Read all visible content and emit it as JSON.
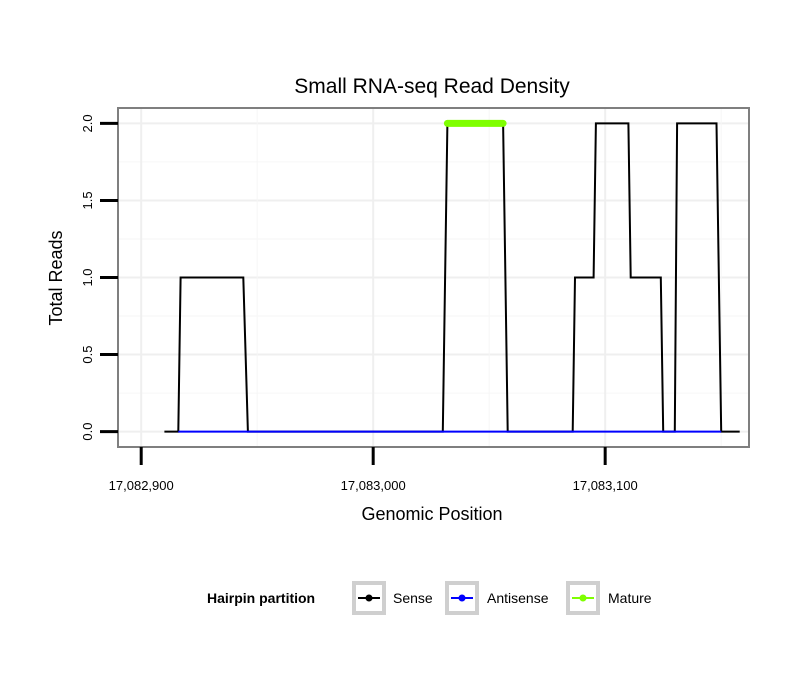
{
  "chart_data": {
    "type": "line",
    "title": "Small RNA-seq Read Density",
    "xlabel": "Genomic Position",
    "ylabel": "Total Reads",
    "xlim": [
      17082890,
      17083162
    ],
    "ylim": [
      -0.1,
      2.1
    ],
    "x_ticks": [
      17082900,
      17083000,
      17083100
    ],
    "x_tick_labels": [
      "17,082,900",
      "17,083,000",
      "17,083,100"
    ],
    "y_ticks": [
      0,
      0.5,
      1,
      1.5,
      2
    ],
    "y_tick_labels": [
      "0.0",
      "0.5",
      "1.0",
      "1.5",
      "2.0"
    ],
    "grid": true,
    "series": [
      {
        "name": "Sense",
        "color": "#000000",
        "x": [
          17082910,
          17082916,
          17082917,
          17082944,
          17082946,
          17083030,
          17083032,
          17083056,
          17083058,
          17083086,
          17083087,
          17083095,
          17083096,
          17083110,
          17083111,
          17083124,
          17083125,
          17083130,
          17083131,
          17083148,
          17083150,
          17083158
        ],
        "y": [
          0,
          0,
          1,
          1,
          0,
          0,
          2,
          2,
          0,
          0,
          1,
          1,
          2,
          2,
          1,
          1,
          0,
          0,
          2,
          2,
          0,
          0
        ]
      },
      {
        "name": "Antisense",
        "color": "#0000ff",
        "x": [
          17082916,
          17083150
        ],
        "y": [
          0,
          0
        ]
      },
      {
        "name": "Mature",
        "color": "#7fff00",
        "x": [
          17083032,
          17083056
        ],
        "y": [
          2,
          2
        ]
      }
    ],
    "legend": {
      "title": "Hairpin partition",
      "position": "bottom",
      "items": [
        {
          "label": "Sense",
          "color": "#000000"
        },
        {
          "label": "Antisense",
          "color": "#0000ff"
        },
        {
          "label": "Mature",
          "color": "#7fff00"
        }
      ]
    }
  }
}
